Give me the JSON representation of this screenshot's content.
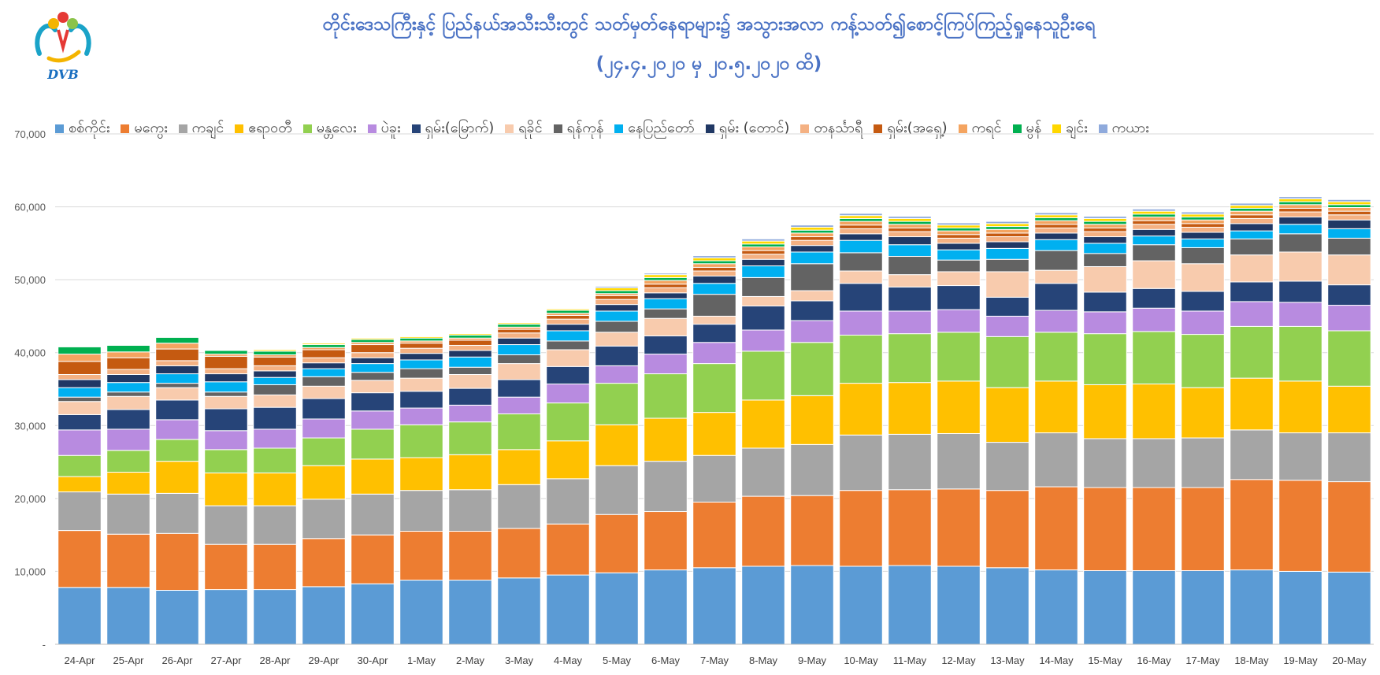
{
  "logo": {
    "text": "DVB"
  },
  "title_line1": "တိုင်းဒေသကြီးနှင့် ပြည်နယ်အသီးသီးတွင် သတ်မှတ်နေရာများ၌ အသွားအလာ ကန့်သတ်၍စောင့်ကြပ်ကြည့်ရှုနေသူဦးရေ",
  "title_line2": "(၂၄.၄.၂၀၂၀ မှ ၂၀.၅.၂၀၂၀ ထိ)",
  "chart_data": {
    "type": "bar",
    "stacked": true,
    "title": "တိုင်းဒေသကြီးနှင့် ပြည်နယ်အသီးသီးတွင် သတ်မှတ်နေရာများ၌ အသွားအလာ ကန့်သတ်၍စောင့်ကြပ်ကြည့်ရှုနေသူဦးရေ (၂၄.၄.၂၀၂၀ မှ ၂၀.၅.၂၀၂၀ ထိ)",
    "ylim": [
      0,
      70000
    ],
    "yticks": [
      0,
      10000,
      20000,
      30000,
      40000,
      50000,
      60000,
      70000
    ],
    "ytick_labels": [
      "-",
      "10,000",
      "20,000",
      "30,000",
      "40,000",
      "50,000",
      "60,000",
      "70,000"
    ],
    "grid": true,
    "legend": "top",
    "categories": [
      "24-Apr",
      "25-Apr",
      "26-Apr",
      "27-Apr",
      "28-Apr",
      "29-Apr",
      "30-Apr",
      "1-May",
      "2-May",
      "3-May",
      "4-May",
      "5-May",
      "6-May",
      "7-May",
      "8-May",
      "9-May",
      "10-May",
      "11-May",
      "12-May",
      "13-May",
      "14-May",
      "15-May",
      "16-May",
      "17-May",
      "18-May",
      "19-May",
      "20-May"
    ],
    "series": [
      {
        "name": "စစ်ကိုင်း",
        "color": "#5b9bd5",
        "values": [
          7800,
          7800,
          7400,
          7500,
          7500,
          7900,
          8300,
          8800,
          8800,
          9100,
          9500,
          9800,
          10200,
          10500,
          10700,
          10800,
          10700,
          10800,
          10700,
          10500,
          10200,
          10100,
          10100,
          10100,
          10200,
          10000,
          9900
        ]
      },
      {
        "name": "မကွေး",
        "color": "#ed7d31",
        "values": [
          7800,
          7300,
          7800,
          6200,
          6200,
          6600,
          6700,
          6700,
          6700,
          6800,
          7000,
          8000,
          8000,
          9000,
          9600,
          9600,
          10400,
          10400,
          10600,
          10600,
          11400,
          11400,
          11400,
          11400,
          12400,
          12500,
          12400
        ]
      },
      {
        "name": "ကချင်",
        "color": "#a5a5a5",
        "values": [
          5300,
          5500,
          5500,
          5300,
          5300,
          5400,
          5600,
          5600,
          5700,
          6000,
          6200,
          6700,
          6900,
          6400,
          6600,
          7000,
          7600,
          7600,
          7600,
          6600,
          7400,
          6700,
          6700,
          6800,
          6800,
          6500,
          6700
        ]
      },
      {
        "name": "ဧရာဝတီ",
        "color": "#ffc000",
        "values": [
          2100,
          3000,
          4400,
          4500,
          4500,
          4600,
          4800,
          4500,
          4800,
          4800,
          5200,
          5600,
          5900,
          5900,
          6600,
          6700,
          7100,
          7100,
          7200,
          7500,
          7100,
          7400,
          7500,
          6900,
          7100,
          7100,
          6400
        ]
      },
      {
        "name": "မန္တလေး",
        "color": "#92d050",
        "values": [
          2900,
          3000,
          3000,
          3200,
          3400,
          3800,
          4100,
          4500,
          4500,
          4900,
          5200,
          5700,
          6100,
          6700,
          6700,
          7300,
          6600,
          6700,
          6700,
          7000,
          6700,
          7000,
          7200,
          7300,
          7100,
          7500,
          7600
        ]
      },
      {
        "name": "ပဲခူး",
        "color": "#b88be0",
        "values": [
          3500,
          2900,
          2700,
          2600,
          2600,
          2600,
          2500,
          2300,
          2300,
          2300,
          2600,
          2400,
          2700,
          2900,
          2900,
          3000,
          3300,
          3100,
          3100,
          2800,
          3000,
          3000,
          3200,
          3200,
          3400,
          3300,
          3500
        ]
      },
      {
        "name": "ရှမ်း(မြောက်)",
        "color": "#264478",
        "values": [
          2100,
          2700,
          2700,
          3000,
          3000,
          2800,
          2500,
          2300,
          2300,
          2400,
          2400,
          2700,
          2500,
          2500,
          3300,
          2700,
          3800,
          3300,
          3300,
          2600,
          3700,
          2700,
          2700,
          2700,
          2700,
          2900,
          2800
        ]
      },
      {
        "name": "ရခိုင်",
        "color": "#f8cbad",
        "values": [
          1800,
          1800,
          1700,
          1700,
          1700,
          1700,
          1700,
          1800,
          1900,
          2200,
          2300,
          1900,
          2400,
          1100,
          1300,
          1400,
          1700,
          1700,
          1900,
          3500,
          1800,
          3500,
          3800,
          3800,
          3700,
          4000,
          4100
        ]
      },
      {
        "name": "ရန်ကုန်",
        "color": "#636363",
        "values": [
          600,
          600,
          600,
          600,
          1400,
          1300,
          1100,
          1300,
          1000,
          1200,
          1200,
          1500,
          1300,
          3000,
          2600,
          3700,
          2500,
          2500,
          1600,
          1700,
          2700,
          1800,
          2200,
          2200,
          2200,
          2500,
          2300
        ]
      },
      {
        "name": "နေပြည်တော်",
        "color": "#00b0f0",
        "values": [
          1300,
          1300,
          1300,
          1400,
          1000,
          1100,
          1200,
          1200,
          1400,
          1400,
          1400,
          1400,
          1400,
          1500,
          1600,
          1600,
          1700,
          1600,
          1400,
          1500,
          1500,
          1400,
          1200,
          1200,
          1100,
          1300,
          1300
        ]
      },
      {
        "name": "ရှမ်း (တောင်)",
        "color": "#203864",
        "values": [
          1100,
          1100,
          1100,
          1100,
          900,
          800,
          800,
          900,
          900,
          900,
          900,
          900,
          800,
          1000,
          900,
          900,
          900,
          1100,
          900,
          900,
          900,
          900,
          900,
          900,
          1000,
          1000,
          1200
        ]
      },
      {
        "name": "တနင်္သာရီ",
        "color": "#f4b183",
        "values": [
          700,
          700,
          700,
          700,
          700,
          700,
          700,
          700,
          700,
          700,
          700,
          700,
          700,
          700,
          700,
          700,
          700,
          700,
          700,
          700,
          700,
          700,
          700,
          700,
          700,
          700,
          700
        ]
      },
      {
        "name": "ရှမ်း(အရှေ့)",
        "color": "#c55a11",
        "values": [
          1800,
          1600,
          1600,
          1700,
          1200,
          1100,
          1100,
          700,
          700,
          500,
          500,
          500,
          500,
          500,
          500,
          500,
          500,
          500,
          500,
          500,
          500,
          500,
          500,
          500,
          500,
          500,
          500
        ]
      },
      {
        "name": "ကရင်",
        "color": "#f4a460",
        "values": [
          1000,
          800,
          800,
          300,
          300,
          300,
          300,
          300,
          300,
          300,
          300,
          300,
          500,
          500,
          500,
          500,
          500,
          500,
          500,
          500,
          500,
          500,
          500,
          500,
          500,
          500,
          500
        ]
      },
      {
        "name": "မွန်",
        "color": "#00b050",
        "values": [
          1000,
          900,
          800,
          500,
          500,
          400,
          400,
          400,
          400,
          400,
          400,
          400,
          400,
          400,
          400,
          400,
          400,
          400,
          400,
          400,
          400,
          400,
          400,
          400,
          400,
          400,
          400
        ]
      },
      {
        "name": "ချင်း",
        "color": "#ffd700",
        "values": [
          100,
          100,
          100,
          100,
          200,
          200,
          200,
          200,
          200,
          200,
          200,
          400,
          400,
          400,
          400,
          400,
          400,
          400,
          400,
          400,
          400,
          400,
          400,
          400,
          400,
          400,
          400
        ]
      },
      {
        "name": "ကယား",
        "color": "#8faadc",
        "values": [
          100,
          100,
          100,
          100,
          100,
          100,
          100,
          100,
          100,
          100,
          100,
          200,
          200,
          300,
          300,
          300,
          300,
          300,
          300,
          300,
          300,
          300,
          300,
          300,
          300,
          300,
          300
        ]
      }
    ]
  }
}
